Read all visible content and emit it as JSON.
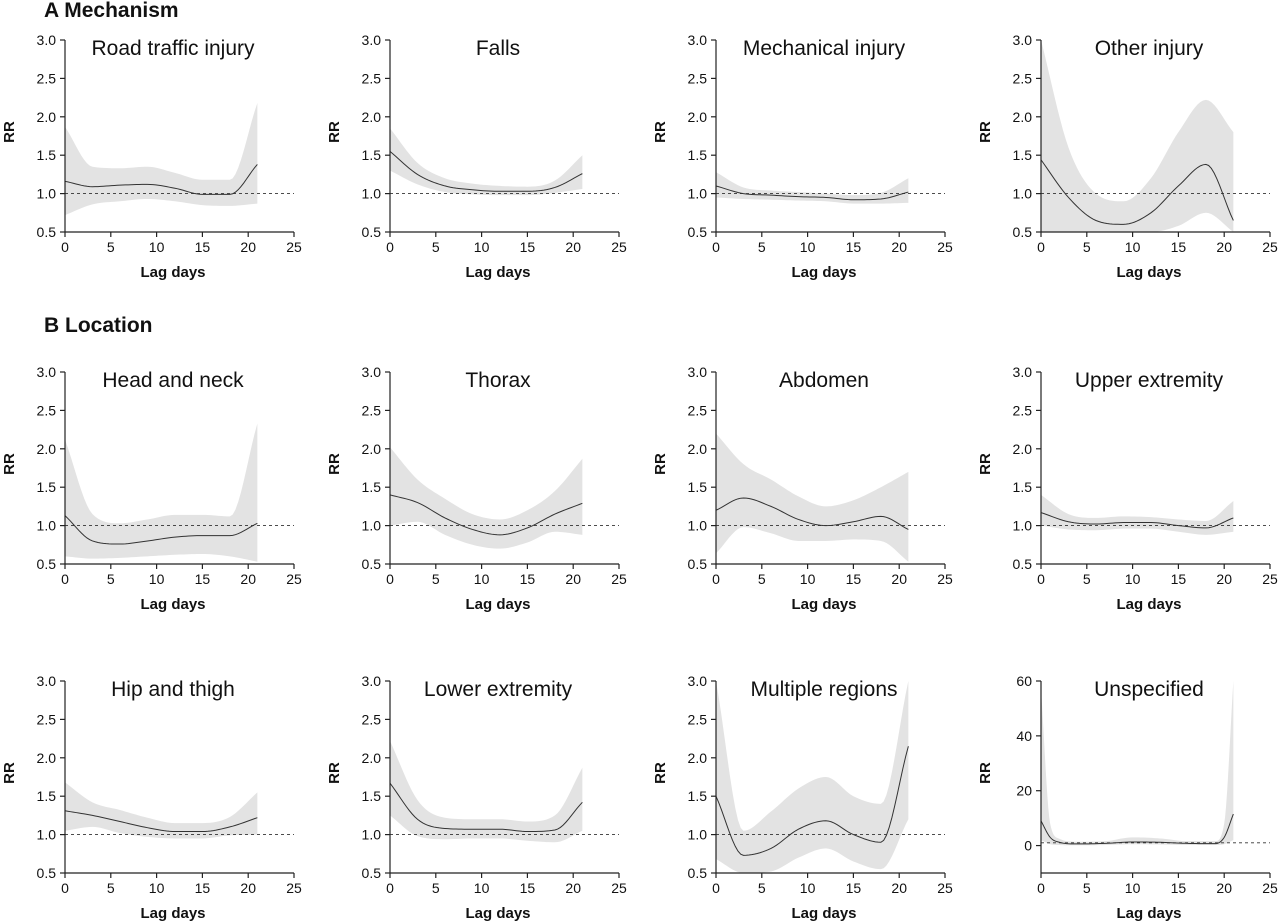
{
  "sections": [
    {
      "label": "A Mechanism"
    },
    {
      "label": "B Location"
    }
  ],
  "colors": {
    "band": "#e3e3e3",
    "curve": "#333333",
    "axis": "#222222",
    "reference": "#333333"
  },
  "chart_data": [
    {
      "type": "line",
      "title": "Road traffic injury",
      "xlabel": "Lag days",
      "ylabel": "RR",
      "xlim": [
        0,
        25
      ],
      "ylim": [
        0.5,
        3.0
      ],
      "xticks": [
        0,
        5,
        10,
        15,
        20,
        25
      ],
      "yticks": [
        0.5,
        1.0,
        1.5,
        2.0,
        2.5,
        3.0
      ],
      "reference_y": 1.0,
      "x": [
        0,
        3,
        6,
        9,
        12,
        15,
        18,
        21
      ],
      "series": [
        {
          "rr": [
            1.16,
            1.09,
            1.11,
            1.12,
            1.07,
            0.99,
            0.99,
            1.38
          ],
          "lower": [
            0.72,
            0.86,
            0.9,
            0.93,
            0.9,
            0.85,
            0.84,
            0.87
          ],
          "upper": [
            1.87,
            1.35,
            1.33,
            1.35,
            1.27,
            1.18,
            1.18,
            2.18
          ]
        }
      ]
    },
    {
      "type": "line",
      "title": "Falls",
      "xlabel": "Lag days",
      "ylabel": "RR",
      "xlim": [
        0,
        25
      ],
      "ylim": [
        0.5,
        3.0
      ],
      "xticks": [
        0,
        5,
        10,
        15,
        20,
        25
      ],
      "yticks": [
        0.5,
        1.0,
        1.5,
        2.0,
        2.5,
        3.0
      ],
      "reference_y": 1.0,
      "x": [
        0,
        3,
        6,
        9,
        12,
        15,
        18,
        21
      ],
      "series": [
        {
          "rr": [
            1.55,
            1.25,
            1.1,
            1.05,
            1.03,
            1.03,
            1.08,
            1.26
          ],
          "lower": [
            1.3,
            1.12,
            1.02,
            0.99,
            0.98,
            0.98,
            1.01,
            1.06
          ],
          "upper": [
            1.85,
            1.4,
            1.2,
            1.13,
            1.1,
            1.09,
            1.17,
            1.5
          ]
        }
      ]
    },
    {
      "type": "line",
      "title": "Mechanical injury",
      "xlabel": "Lag days",
      "ylabel": "RR",
      "xlim": [
        0,
        25
      ],
      "ylim": [
        0.5,
        3.0
      ],
      "xticks": [
        0,
        5,
        10,
        15,
        20,
        25
      ],
      "yticks": [
        0.5,
        1.0,
        1.5,
        2.0,
        2.5,
        3.0
      ],
      "reference_y": 1.0,
      "x": [
        0,
        3,
        6,
        9,
        12,
        15,
        18,
        21
      ],
      "series": [
        {
          "rr": [
            1.1,
            1.0,
            0.98,
            0.96,
            0.95,
            0.92,
            0.93,
            1.02
          ],
          "lower": [
            0.95,
            0.93,
            0.92,
            0.91,
            0.9,
            0.87,
            0.87,
            0.88
          ],
          "upper": [
            1.28,
            1.08,
            1.04,
            1.02,
            1.0,
            0.98,
            1.01,
            1.2
          ]
        }
      ]
    },
    {
      "type": "line",
      "title": "Other injury",
      "xlabel": "Lag days",
      "ylabel": "RR",
      "xlim": [
        0,
        25
      ],
      "ylim": [
        0.5,
        3.0
      ],
      "xticks": [
        0,
        5,
        10,
        15,
        20,
        25
      ],
      "yticks": [
        0.5,
        1.0,
        1.5,
        2.0,
        2.5,
        3.0
      ],
      "reference_y": 1.0,
      "x": [
        0,
        3,
        6,
        9,
        12,
        15,
        18,
        21
      ],
      "series": [
        {
          "rr": [
            1.44,
            0.95,
            0.65,
            0.6,
            0.75,
            1.1,
            1.38,
            0.65
          ],
          "lower": [
            0.5,
            0.5,
            0.5,
            0.5,
            0.5,
            0.58,
            0.75,
            0.5
          ],
          "upper": [
            3.0,
            1.6,
            1.0,
            0.9,
            1.2,
            1.8,
            2.22,
            1.8
          ]
        }
      ]
    },
    {
      "type": "line",
      "title": "Head and neck",
      "xlabel": "Lag days",
      "ylabel": "RR",
      "xlim": [
        0,
        25
      ],
      "ylim": [
        0.5,
        3.0
      ],
      "xticks": [
        0,
        5,
        10,
        15,
        20,
        25
      ],
      "yticks": [
        0.5,
        1.0,
        1.5,
        2.0,
        2.5,
        3.0
      ],
      "reference_y": 1.0,
      "x": [
        0,
        3,
        6,
        9,
        12,
        15,
        18,
        21
      ],
      "series": [
        {
          "rr": [
            1.13,
            0.8,
            0.76,
            0.8,
            0.85,
            0.87,
            0.87,
            1.03
          ],
          "lower": [
            0.6,
            0.57,
            0.58,
            0.6,
            0.62,
            0.63,
            0.6,
            0.53
          ],
          "upper": [
            2.12,
            1.15,
            1.03,
            1.08,
            1.14,
            1.14,
            1.12,
            2.33
          ]
        }
      ]
    },
    {
      "type": "line",
      "title": "Thorax",
      "xlabel": "Lag days",
      "ylabel": "RR",
      "xlim": [
        0,
        25
      ],
      "ylim": [
        0.5,
        3.0
      ],
      "xticks": [
        0,
        5,
        10,
        15,
        20,
        25
      ],
      "yticks": [
        0.5,
        1.0,
        1.5,
        2.0,
        2.5,
        3.0
      ],
      "reference_y": 1.0,
      "x": [
        0,
        3,
        6,
        9,
        12,
        15,
        18,
        21
      ],
      "series": [
        {
          "rr": [
            1.4,
            1.3,
            1.1,
            0.95,
            0.88,
            0.97,
            1.15,
            1.29
          ],
          "lower": [
            1.0,
            1.05,
            0.88,
            0.75,
            0.7,
            0.78,
            0.92,
            0.88
          ],
          "upper": [
            2.02,
            1.6,
            1.35,
            1.15,
            1.08,
            1.2,
            1.45,
            1.87
          ]
        }
      ]
    },
    {
      "type": "line",
      "title": "Abdomen",
      "xlabel": "Lag days",
      "ylabel": "RR",
      "xlim": [
        0,
        25
      ],
      "ylim": [
        0.5,
        3.0
      ],
      "xticks": [
        0,
        5,
        10,
        15,
        20,
        25
      ],
      "yticks": [
        0.5,
        1.0,
        1.5,
        2.0,
        2.5,
        3.0
      ],
      "reference_y": 1.0,
      "x": [
        0,
        3,
        6,
        9,
        12,
        15,
        18,
        21
      ],
      "series": [
        {
          "rr": [
            1.2,
            1.36,
            1.25,
            1.08,
            1.0,
            1.05,
            1.12,
            0.95
          ],
          "lower": [
            0.64,
            0.98,
            0.9,
            0.8,
            0.8,
            0.82,
            0.8,
            0.53
          ],
          "upper": [
            2.2,
            1.8,
            1.6,
            1.38,
            1.25,
            1.33,
            1.5,
            1.7
          ]
        }
      ]
    },
    {
      "type": "line",
      "title": "Upper extremity",
      "xlabel": "Lag days",
      "ylabel": "RR",
      "xlim": [
        0,
        25
      ],
      "ylim": [
        0.5,
        3.0
      ],
      "xticks": [
        0,
        5,
        10,
        15,
        20,
        25
      ],
      "yticks": [
        0.5,
        1.0,
        1.5,
        2.0,
        2.5,
        3.0
      ],
      "reference_y": 1.0,
      "x": [
        0,
        3,
        6,
        9,
        12,
        15,
        18,
        21
      ],
      "series": [
        {
          "rr": [
            1.17,
            1.05,
            1.02,
            1.04,
            1.04,
            1.0,
            0.97,
            1.1
          ],
          "lower": [
            1.0,
            0.95,
            0.94,
            0.96,
            0.96,
            0.92,
            0.88,
            0.92
          ],
          "upper": [
            1.4,
            1.15,
            1.1,
            1.12,
            1.11,
            1.08,
            1.06,
            1.32
          ]
        }
      ]
    },
    {
      "type": "line",
      "title": "Hip and thigh",
      "xlabel": "Lag days",
      "ylabel": "RR",
      "xlim": [
        0,
        25
      ],
      "ylim": [
        0.5,
        3.0
      ],
      "xticks": [
        0,
        5,
        10,
        15,
        20,
        25
      ],
      "yticks": [
        0.5,
        1.0,
        1.5,
        2.0,
        2.5,
        3.0
      ],
      "reference_y": 1.0,
      "x": [
        0,
        3,
        6,
        9,
        12,
        15,
        18,
        21
      ],
      "series": [
        {
          "rr": [
            1.31,
            1.25,
            1.17,
            1.09,
            1.04,
            1.04,
            1.1,
            1.22
          ],
          "lower": [
            1.05,
            1.1,
            1.02,
            0.97,
            0.95,
            0.95,
            0.99,
            1.0
          ],
          "upper": [
            1.68,
            1.42,
            1.32,
            1.22,
            1.15,
            1.15,
            1.23,
            1.55
          ]
        }
      ]
    },
    {
      "type": "line",
      "title": "Lower extremity",
      "xlabel": "Lag days",
      "ylabel": "RR",
      "xlim": [
        0,
        25
      ],
      "ylim": [
        0.5,
        3.0
      ],
      "xticks": [
        0,
        5,
        10,
        15,
        20,
        25
      ],
      "yticks": [
        0.5,
        1.0,
        1.5,
        2.0,
        2.5,
        3.0
      ],
      "reference_y": 1.0,
      "x": [
        0,
        3,
        6,
        9,
        12,
        15,
        18,
        21
      ],
      "series": [
        {
          "rr": [
            1.67,
            1.2,
            1.08,
            1.07,
            1.07,
            1.04,
            1.06,
            1.42
          ],
          "lower": [
            1.25,
            0.98,
            0.94,
            0.95,
            0.95,
            0.92,
            0.9,
            1.05
          ],
          "upper": [
            2.22,
            1.45,
            1.22,
            1.2,
            1.2,
            1.17,
            1.25,
            1.87
          ]
        }
      ]
    },
    {
      "type": "line",
      "title": "Multiple regions",
      "xlabel": "Lag days",
      "ylabel": "RR",
      "xlim": [
        0,
        25
      ],
      "ylim": [
        0.5,
        3.0
      ],
      "xticks": [
        0,
        5,
        10,
        15,
        20,
        25
      ],
      "yticks": [
        0.5,
        1.0,
        1.5,
        2.0,
        2.5,
        3.0
      ],
      "reference_y": 1.0,
      "x": [
        0,
        3,
        6,
        9,
        12,
        15,
        18,
        21
      ],
      "series": [
        {
          "rr": [
            1.5,
            0.73,
            0.82,
            1.07,
            1.18,
            1.0,
            0.9,
            2.15
          ],
          "lower": [
            0.68,
            0.5,
            0.52,
            0.7,
            0.82,
            0.65,
            0.55,
            1.2
          ],
          "upper": [
            3.0,
            1.05,
            1.3,
            1.6,
            1.75,
            1.5,
            1.4,
            3.0
          ]
        }
      ]
    },
    {
      "type": "line",
      "title": "Unspecified",
      "xlabel": "Lag days",
      "ylabel": "RR",
      "xlim": [
        0,
        25
      ],
      "ylim": [
        -10,
        60
      ],
      "xticks": [
        0,
        5,
        10,
        15,
        20,
        25
      ],
      "yticks": [
        0,
        20,
        40,
        60
      ],
      "reference_y": 1.0,
      "x": [
        0,
        1,
        2,
        4,
        7,
        10,
        13,
        16,
        19,
        20,
        21
      ],
      "series": [
        {
          "rr": [
            9,
            3,
            1.2,
            0.6,
            0.8,
            1.3,
            1.2,
            0.8,
            0.7,
            3,
            11.5
          ],
          "lower": [
            2,
            0.5,
            0.2,
            0.1,
            0.2,
            0.5,
            0.4,
            0.2,
            0.2,
            0.5,
            2
          ],
          "upper": [
            57,
            8,
            2.5,
            1.4,
            1.6,
            3.0,
            2.6,
            1.6,
            1.6,
            8,
            60
          ]
        }
      ]
    }
  ]
}
